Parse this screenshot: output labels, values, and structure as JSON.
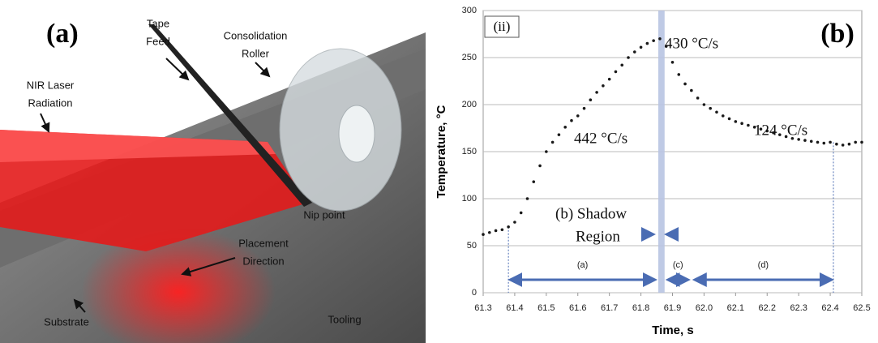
{
  "panel_a": {
    "label": "(a)",
    "labels": [
      [
        "Tape",
        "Feed"
      ],
      [
        "Consolidation",
        "Roller"
      ],
      [
        "NIR Laser",
        "Radiation"
      ],
      [
        "Nip point"
      ],
      [
        "Placement",
        "Direction"
      ],
      [
        "Substrate"
      ],
      [
        "Tooling"
      ]
    ]
  },
  "chart_data": {
    "type": "scatter",
    "panel_label": "(b)",
    "inset_label": "(ii)",
    "x_label": "Time, s",
    "y_label": "Temperature, °C",
    "xlim": [
      61.3,
      62.5
    ],
    "ylim": [
      0,
      300
    ],
    "xticks": [
      61.3,
      61.4,
      61.5,
      61.6,
      61.7,
      61.8,
      61.9,
      {
        "value": 62,
        "label": "62.0"
      },
      62.1,
      62.2,
      62.3,
      62.4,
      62.5
    ],
    "yticks": [
      0,
      50,
      100,
      150,
      200,
      250,
      300
    ],
    "grid": true,
    "color": "#1a1a1a",
    "x": [
      61.3,
      61.32,
      61.34,
      61.36,
      61.38,
      61.4,
      61.42,
      61.44,
      61.46,
      61.48,
      61.5,
      61.52,
      61.54,
      61.56,
      61.58,
      61.6,
      61.62,
      61.64,
      61.66,
      61.68,
      61.7,
      61.72,
      61.74,
      61.76,
      61.78,
      61.8,
      61.82,
      61.84,
      61.86,
      61.88,
      61.9,
      61.92,
      61.94,
      61.96,
      61.98,
      62,
      62.02,
      62.04,
      62.06,
      62.08,
      62.1,
      62.12,
      62.14,
      62.16,
      62.18,
      62.2,
      62.22,
      62.24,
      62.26,
      62.28,
      62.3,
      62.32,
      62.34,
      62.36,
      62.38,
      62.4,
      62.42,
      62.44,
      62.46,
      62.48,
      62.5
    ],
    "values": [
      62,
      64,
      66,
      67,
      70,
      75,
      85,
      100,
      118,
      135,
      150,
      160,
      168,
      176,
      183,
      188,
      196,
      205,
      213,
      220,
      227,
      235,
      242,
      250,
      256,
      261,
      265,
      268,
      270,
      262,
      245,
      232,
      222,
      215,
      207,
      200,
      196,
      192,
      188,
      185,
      182,
      180,
      178,
      176,
      174,
      172,
      170,
      168,
      166,
      164,
      163,
      162,
      161,
      160,
      159,
      160,
      158,
      157,
      158,
      160,
      160
    ],
    "shadow_band": [
      61.855,
      61.875
    ],
    "band_color": "#b8c4e2",
    "arrow_color": "#4a6cb3",
    "regions": [
      {
        "label": "(a)",
        "range": [
          61.38,
          61.85
        ]
      },
      {
        "label": "(c)",
        "range": [
          61.88,
          61.955
        ]
      },
      {
        "label": "(d)",
        "range": [
          61.965,
          62.41
        ]
      }
    ],
    "annotations": [
      "430 °C/s",
      "124 °C/s",
      "442 °C/s",
      "(b) Shadow",
      "Region"
    ]
  }
}
